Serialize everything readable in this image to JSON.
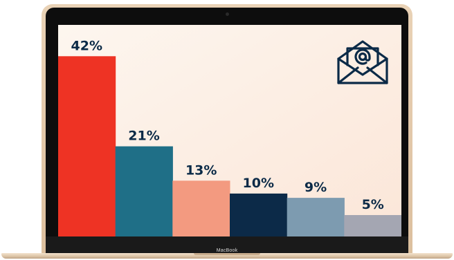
{
  "device": {
    "brand_label": "MacBook"
  },
  "icon": {
    "name": "email-at-envelope-icon",
    "color": "#0b2a47"
  },
  "chart_data": {
    "type": "bar",
    "values": [
      42,
      21,
      13,
      10,
      9,
      5
    ],
    "labels": [
      "42%",
      "21%",
      "13%",
      "10%",
      "9%",
      "5%"
    ],
    "colors": [
      "#ee3324",
      "#1f6f87",
      "#f39a80",
      "#0c2a48",
      "#7d9bb0",
      "#a4a6b2"
    ],
    "label_color": "#0b2a47",
    "background": [
      "#fdf6ef",
      "#fbe6d8"
    ],
    "ylim": [
      0,
      48
    ],
    "grid": false,
    "legend": "none"
  }
}
